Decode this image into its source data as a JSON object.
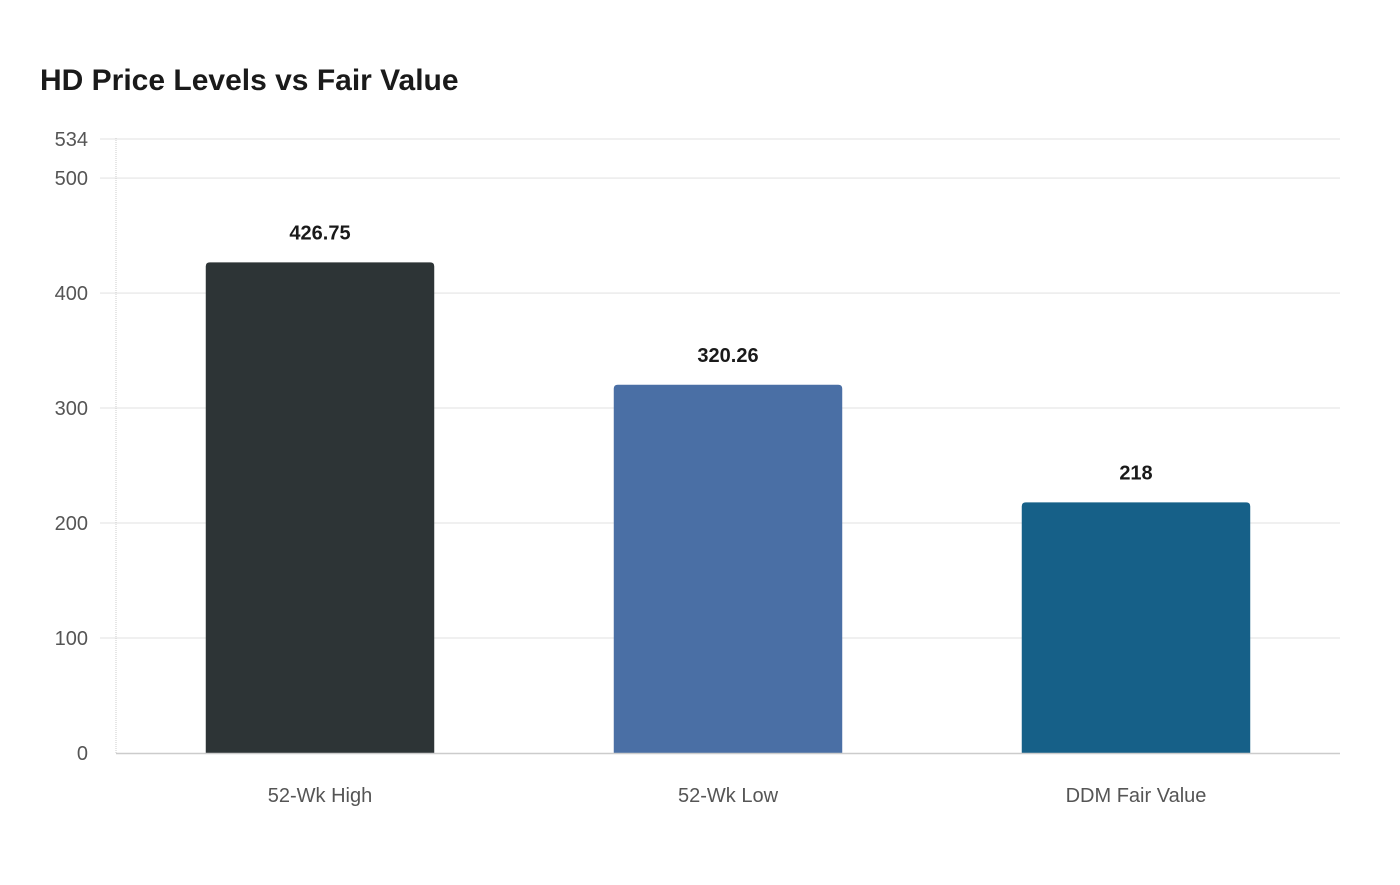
{
  "chart_data": {
    "type": "bar",
    "title": "HD Price Levels vs Fair Value",
    "xlabel": "",
    "ylabel": "",
    "categories": [
      "52-Wk High",
      "52-Wk Low",
      "DDM Fair Value"
    ],
    "values": [
      426.75,
      320.26,
      218
    ],
    "data_labels": [
      "426.75",
      "320.26",
      "218"
    ],
    "colors": [
      "#2d3436",
      "#4a6fa5",
      "#166088"
    ],
    "ylim": [
      0,
      534
    ],
    "yticks": [
      0,
      100,
      200,
      300,
      400,
      500,
      534
    ],
    "grid": true,
    "legend": "none"
  }
}
